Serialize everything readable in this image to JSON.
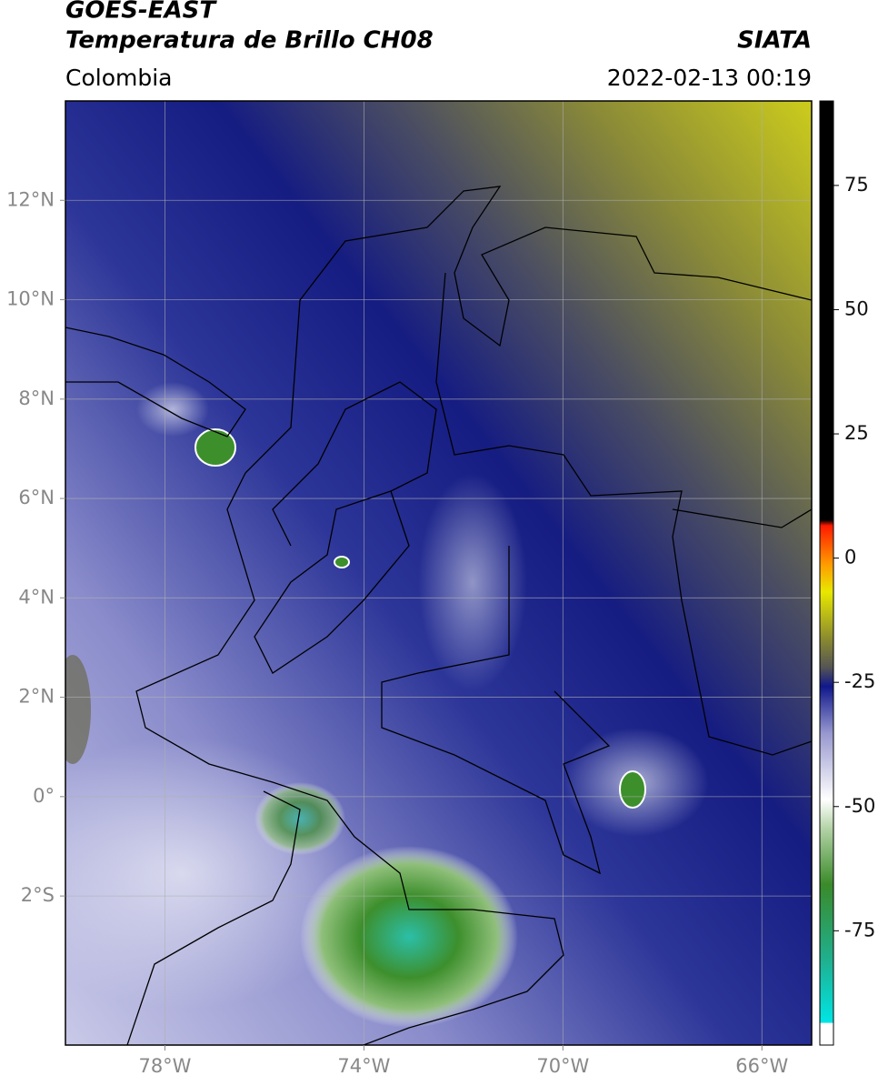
{
  "header": {
    "title": "GOES-EAST",
    "subtitle": "Temperatura de Brillo CH08",
    "source": "SIATA",
    "region": "Colombia",
    "timestamp": "2022-02-13 00:19"
  },
  "map": {
    "xlim": [
      -80,
      -65
    ],
    "ylim": [
      -5,
      14
    ],
    "xticks": [
      {
        "value": -78,
        "label": "78°W"
      },
      {
        "value": -74,
        "label": "74°W"
      },
      {
        "value": -70,
        "label": "70°W"
      },
      {
        "value": -66,
        "label": "66°W"
      }
    ],
    "yticks": [
      {
        "value": 12,
        "label": "12°N"
      },
      {
        "value": 10,
        "label": "10°N"
      },
      {
        "value": 8,
        "label": "8°N"
      },
      {
        "value": 6,
        "label": "6°N"
      },
      {
        "value": 4,
        "label": "4°N"
      },
      {
        "value": 2,
        "label": "2°N"
      },
      {
        "value": 0,
        "label": "0°"
      },
      {
        "value": -2,
        "label": "2°S"
      }
    ]
  },
  "colorbar": {
    "lim": [
      -98,
      92
    ],
    "ticks": [
      -75,
      -50,
      -25,
      0,
      25,
      50,
      75
    ]
  }
}
